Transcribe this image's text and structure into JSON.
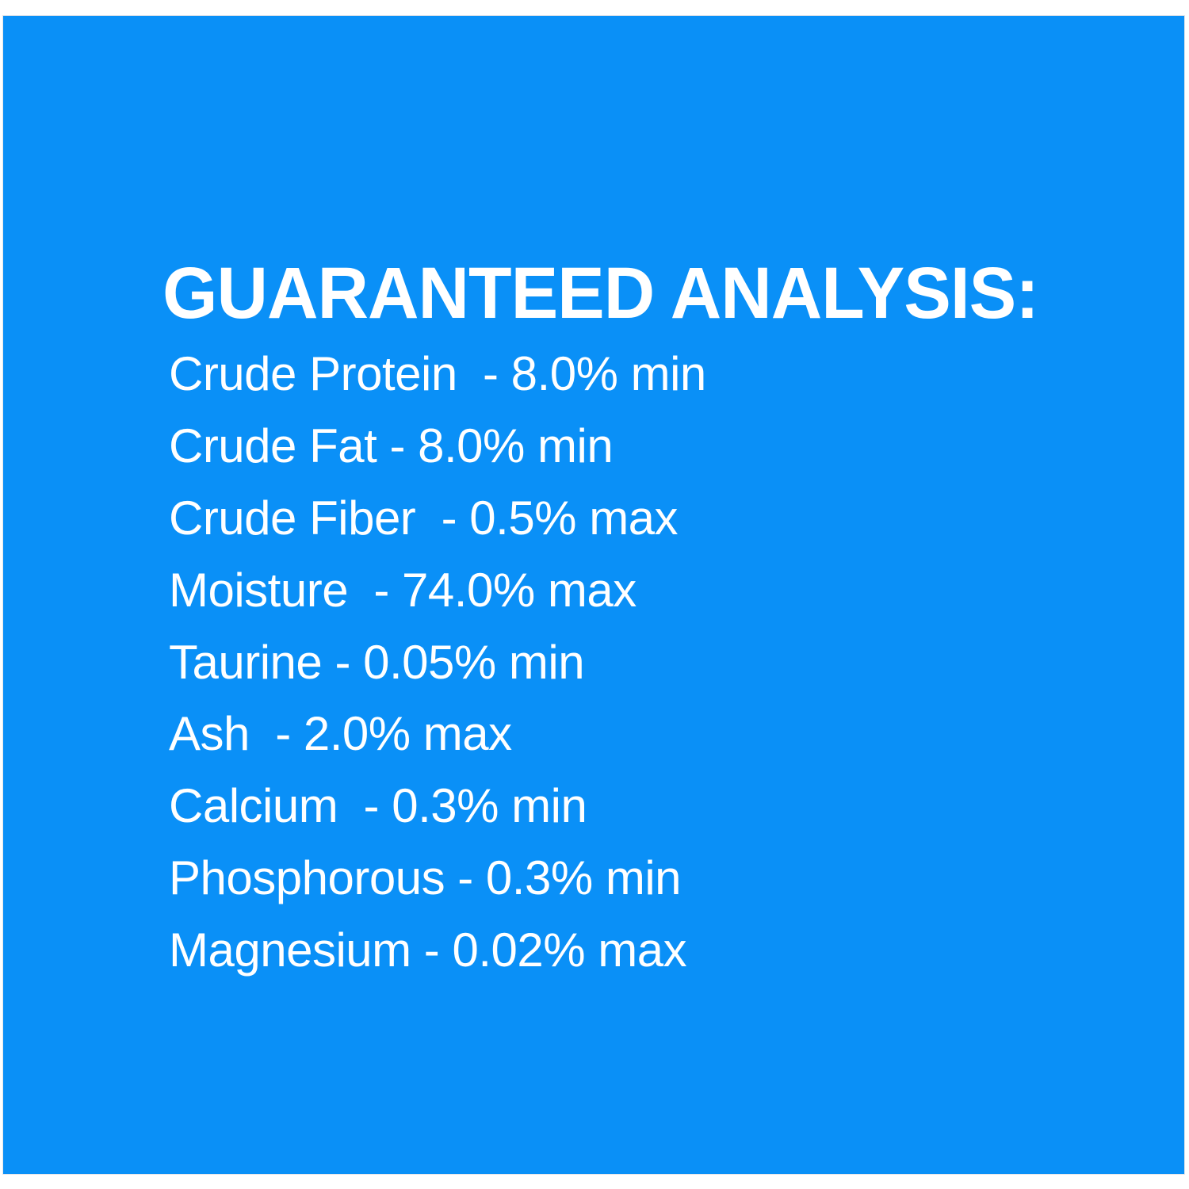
{
  "colors": {
    "background": "#0a90f7",
    "text": "#ffffff"
  },
  "title": "GUARANTEED ANALYSIS:",
  "items": [
    "Crude Protein  - 8.0% min",
    "Crude Fat - 8.0% min",
    "Crude Fiber  - 0.5% max",
    "Moisture  - 74.0% max",
    "Taurine - 0.05% min",
    "Ash  - 2.0% max",
    "Calcium  - 0.3% min",
    "Phosphorous - 0.3% min",
    "Magnesium - 0.02% max"
  ]
}
